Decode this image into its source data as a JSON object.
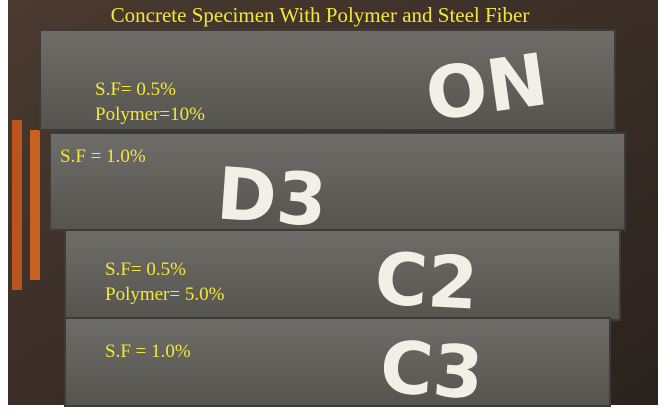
{
  "title": "Concrete Specimen With Polymer and Steel Fiber",
  "specimens": [
    {
      "labels": [
        "S.F= 0.5%",
        "Polymer=10%"
      ],
      "marking": "ON"
    },
    {
      "labels": [
        "S.F = 1.0%"
      ],
      "marking": "D3"
    },
    {
      "labels": [
        "S.F= 0.5%",
        "Polymer= 5.0%"
      ],
      "marking": "C2"
    },
    {
      "labels": [
        "S.F = 1.0%"
      ],
      "marking": "C3"
    }
  ]
}
